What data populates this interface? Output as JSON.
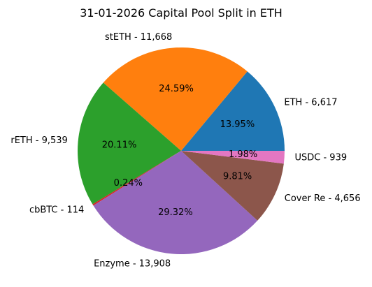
{
  "chart_data": {
    "type": "pie",
    "title": "31-01-2026 Capital Pool Split in ETH",
    "slices": [
      {
        "label": "ETH - 6,617",
        "value": 6617,
        "pct_label": "13.95%",
        "color": "#1f77b4"
      },
      {
        "label": "stETH - 11,668",
        "value": 11668,
        "pct_label": "24.59%",
        "color": "#ff7f0e"
      },
      {
        "label": "rETH - 9,539",
        "value": 9539,
        "pct_label": "20.11%",
        "color": "#2ca02c"
      },
      {
        "label": "cbBTC - 114",
        "value": 114,
        "pct_label": "0.24%",
        "color": "#d62728"
      },
      {
        "label": "Enzyme - 13,908",
        "value": 13908,
        "pct_label": "29.32%",
        "color": "#9467bd"
      },
      {
        "label": "Cover Re - 4,656",
        "value": 4656,
        "pct_label": "9.81%",
        "color": "#8c564b"
      },
      {
        "label": "USDC - 939",
        "value": 939,
        "pct_label": "1.98%",
        "color": "#e377c2"
      }
    ],
    "start_angle_deg": 0,
    "direction": "counterclockwise",
    "legend": "none"
  }
}
